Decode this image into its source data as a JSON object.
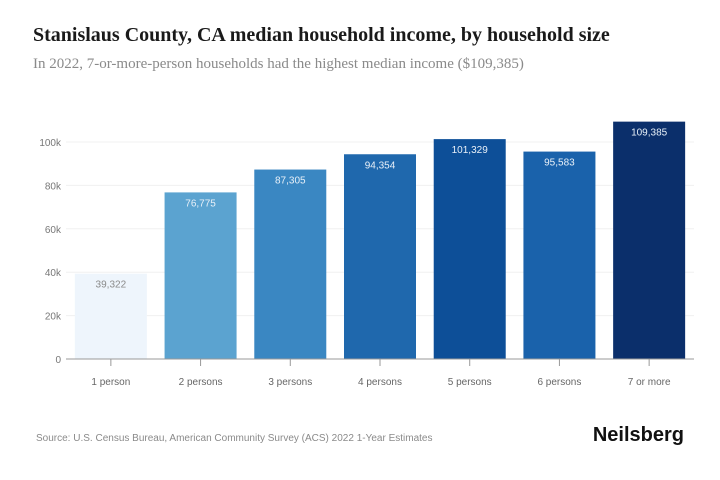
{
  "chart_data": {
    "type": "bar",
    "title": "Stanislaus County, CA median household income, by household size",
    "subtitle": "In 2022, 7-or-more-person households had the highest median income ($109,385)",
    "categories": [
      "1 person",
      "2 persons",
      "3 persons",
      "4 persons",
      "5 persons",
      "6 persons",
      "7 or more"
    ],
    "values": [
      39322,
      76775,
      87305,
      94354,
      101329,
      95583,
      109385
    ],
    "data_labels": [
      "39,322",
      "76,775",
      "87,305",
      "94,354",
      "101,329",
      "95,583",
      "109,385"
    ],
    "colors": [
      "#eef5fc",
      "#5ba3d0",
      "#3a87c2",
      "#1f68ad",
      "#0d4f98",
      "#1a62ab",
      "#0b2f6b"
    ],
    "label_colors": [
      "#8a8a8a",
      "#e8f0f8",
      "#e8f0f8",
      "#e8f0f8",
      "#e8f0f8",
      "#e8f0f8",
      "#e8f0f8"
    ],
    "yticks": [
      0,
      20000,
      40000,
      60000,
      80000,
      100000
    ],
    "ytick_labels": [
      "0",
      "20k",
      "40k",
      "60k",
      "80k",
      "100k"
    ],
    "ylim": [
      0,
      110000
    ],
    "xlabel": "",
    "ylabel": "",
    "grid": true
  },
  "footer": {
    "source": "Source: U.S. Census Bureau, American Community Survey (ACS) 2022 1-Year Estimates",
    "logo": "Neilsberg"
  }
}
